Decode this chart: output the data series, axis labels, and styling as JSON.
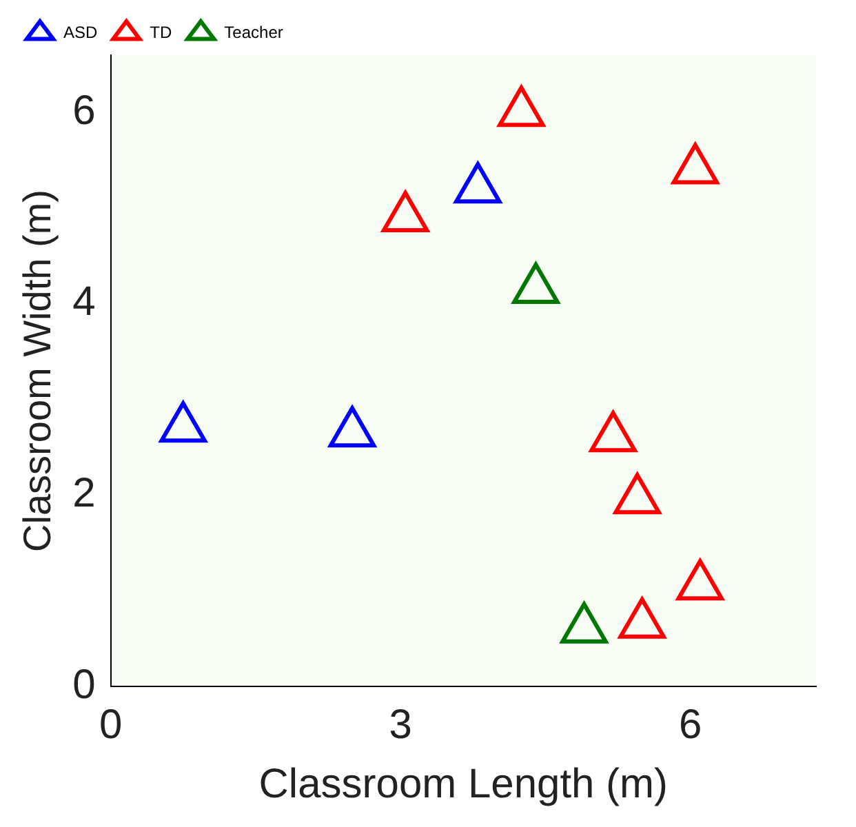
{
  "chart_data": {
    "type": "scatter",
    "xlabel": "Classroom Length (m)",
    "ylabel": "Classroom Width (m)",
    "xlim": [
      0,
      7.3
    ],
    "xticks": [
      0,
      3,
      6
    ],
    "ylim": [
      0,
      6.6
    ],
    "yticks": [
      0,
      2,
      4,
      6
    ],
    "grid": false,
    "legend": "top left",
    "marker": "triangle",
    "series": [
      {
        "name": "ASD",
        "color": "#0000ff",
        "x": [
          3.8,
          0.75,
          2.5
        ],
        "values": [
          5.2,
          2.7,
          2.65
        ]
      },
      {
        "name": "TD",
        "color": "#ff0000",
        "x": [
          4.25,
          6.05,
          3.05,
          5.2,
          5.45,
          6.1,
          5.5
        ],
        "values": [
          6.0,
          5.4,
          4.9,
          2.6,
          1.95,
          1.05,
          0.65
        ]
      },
      {
        "name": "Teacher",
        "color": "#007700",
        "x": [
          4.4,
          4.9
        ],
        "values": [
          4.15,
          0.6
        ]
      }
    ]
  }
}
